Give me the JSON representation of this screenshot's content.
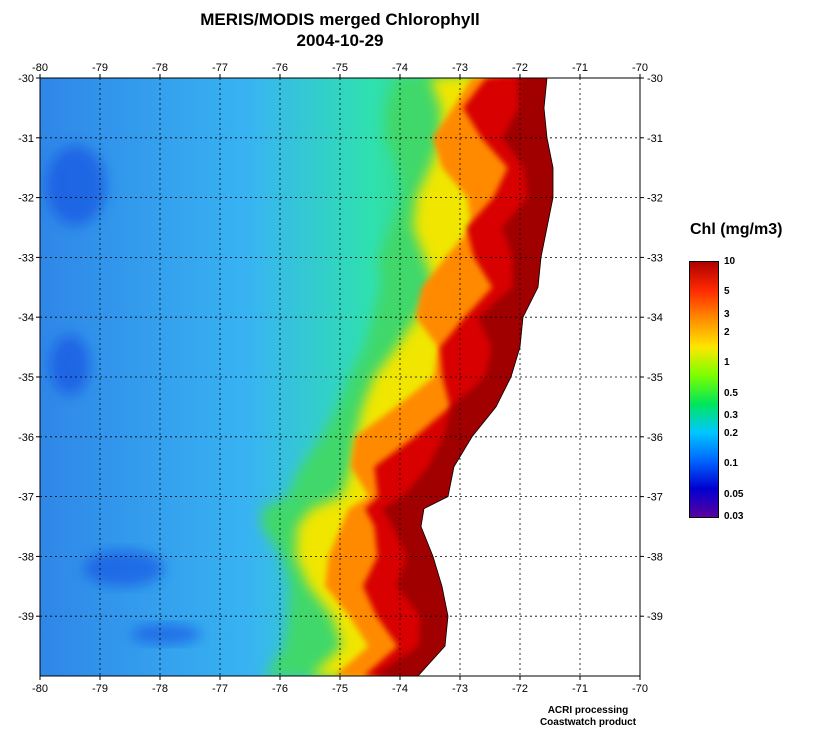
{
  "title": {
    "line1": "MERIS/MODIS merged Chlorophyll",
    "line2": "2004-10-29"
  },
  "map": {
    "lon_range": [
      -80,
      -70
    ],
    "lat_range": [
      -40,
      -30
    ],
    "lon_ticks": [
      -80,
      -79,
      -78,
      -77,
      -76,
      -75,
      -74,
      -73,
      -72,
      -71,
      -70
    ],
    "lat_ticks": [
      -30,
      -31,
      -32,
      -33,
      -34,
      -35,
      -36,
      -37,
      -38,
      -39
    ],
    "lon_tick_labels": [
      "-80",
      "-79",
      "-78",
      "-77",
      "-76",
      "-75",
      "-74",
      "-73",
      "-72",
      "-71",
      "-70"
    ],
    "lat_tick_labels": [
      "-30",
      "-31",
      "-32",
      "-33",
      "-34",
      "-35",
      "-36",
      "-37",
      "-38",
      "-39"
    ],
    "grid": true,
    "coast_lat_lon": [
      [
        -30.0,
        -71.55
      ],
      [
        -30.5,
        -71.6
      ],
      [
        -31.0,
        -71.55
      ],
      [
        -31.5,
        -71.45
      ],
      [
        -32.0,
        -71.45
      ],
      [
        -32.5,
        -71.55
      ],
      [
        -33.0,
        -71.65
      ],
      [
        -33.5,
        -71.7
      ],
      [
        -34.0,
        -71.95
      ],
      [
        -34.5,
        -72.0
      ],
      [
        -35.0,
        -72.15
      ],
      [
        -35.5,
        -72.4
      ],
      [
        -36.0,
        -72.8
      ],
      [
        -36.5,
        -73.1
      ],
      [
        -37.0,
        -73.2
      ],
      [
        -37.2,
        -73.6
      ],
      [
        -37.5,
        -73.65
      ],
      [
        -38.0,
        -73.45
      ],
      [
        -38.5,
        -73.3
      ],
      [
        -39.0,
        -73.2
      ],
      [
        -39.5,
        -73.25
      ],
      [
        -40.0,
        -73.7
      ]
    ]
  },
  "legend": {
    "title": "Chl (mg/m3)",
    "colors": [
      "#b00000",
      "#ff2a00",
      "#ff8c00",
      "#ffe600",
      "#7cff00",
      "#00e65a",
      "#00c8ff",
      "#0066ff",
      "#0000d0",
      "#5a00a0"
    ],
    "labels": [
      {
        "value": 10,
        "text": "10"
      },
      {
        "value": 5,
        "text": "5"
      },
      {
        "value": 3,
        "text": "3"
      },
      {
        "value": 2,
        "text": "2"
      },
      {
        "value": 1,
        "text": "1"
      },
      {
        "value": 0.5,
        "text": "0.5"
      },
      {
        "value": 0.3,
        "text": "0.3"
      },
      {
        "value": 0.2,
        "text": "0.2"
      },
      {
        "value": 0.1,
        "text": "0.1"
      },
      {
        "value": 0.05,
        "text": "0.05"
      },
      {
        "value": 0.03,
        "text": "0.03"
      }
    ],
    "range": [
      0.03,
      10
    ],
    "scale": "log"
  },
  "credits": {
    "line1": "ACRI processing",
    "line2": "Coastwatch product"
  },
  "field_colors": {
    "offshore_blue": "#3aa8f0",
    "mid_cyan": "#40e0d0",
    "mid_green": "#3fd86a",
    "nearshore_yellow": "#f0e600",
    "nearshore_orange": "#ff8a00",
    "coastal_red": "#d80000",
    "coastal_darkred": "#a00000",
    "low_chl_patch": "#1040e0",
    "land": "#ffffff"
  }
}
